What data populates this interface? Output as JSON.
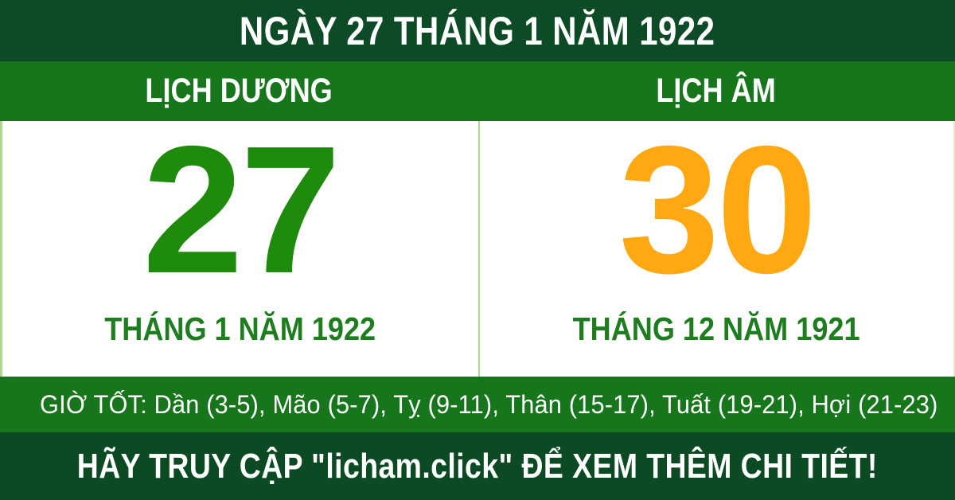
{
  "header": {
    "title": "NGÀY 27 THÁNG 1 NĂM 1922"
  },
  "calendar": {
    "solar": {
      "label": "LỊCH DƯƠNG",
      "day": "27",
      "month_year": "THÁNG 1 NĂM 1922"
    },
    "lunar": {
      "label": "LỊCH ÂM",
      "day": "30",
      "month_year": "THÁNG 12 NĂM 1921"
    }
  },
  "good_hours": {
    "text": "GIỜ TỐT: Dần (3-5), Mão (5-7), Tỵ (9-11), Thân (15-17), Tuất (19-21), Hợi (21-23)"
  },
  "footer": {
    "text": "HÃY TRUY CẬP \"licham.click\" ĐỂ XEM THÊM CHI TIẾT!"
  },
  "colors": {
    "dark_green": "#0D4A26",
    "medium_green": "#17761B",
    "solar_day_green": "#1E8B0C",
    "lunar_day_orange": "#FFA812",
    "label_green": "#1E7D1F",
    "divider_light_green": "#AFD98C",
    "text_white": "#FFFFFF"
  }
}
